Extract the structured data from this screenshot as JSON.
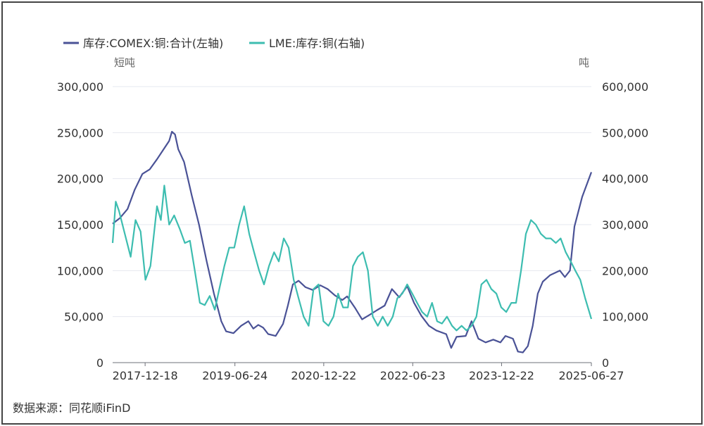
{
  "source": "数据来源：同花顺iFinD",
  "chart_data": {
    "type": "line",
    "title": "",
    "left_axis": {
      "unit": "短吨",
      "ylim": [
        0,
        300000
      ],
      "ticks": [
        "0",
        "50,000",
        "100,000",
        "150,000",
        "200,000",
        "250,000",
        "300,000"
      ]
    },
    "right_axis": {
      "unit": "吨",
      "ylim": [
        0,
        600000
      ],
      "ticks": [
        "0",
        "100,000",
        "200,000",
        "300,000",
        "400,000",
        "500,000",
        "600,000"
      ]
    },
    "x_ticks": [
      "2017-12-18",
      "2019-06-24",
      "2020-12-22",
      "2022-06-23",
      "2023-12-22",
      "2025-06-27"
    ],
    "x_range": [
      "2017-06-01",
      "2025-06-27"
    ],
    "grid": true,
    "legend_position": "top-left",
    "series": [
      {
        "name": "库存:COMEX:铜:合计(左轴)",
        "axis": "left",
        "color": "#4a5296",
        "points": [
          [
            "2017-06-01",
            151000
          ],
          [
            "2017-07-15",
            157000
          ],
          [
            "2017-09-01",
            167000
          ],
          [
            "2017-10-15",
            188000
          ],
          [
            "2017-12-01",
            205000
          ],
          [
            "2018-01-15",
            210000
          ],
          [
            "2018-03-01",
            221000
          ],
          [
            "2018-04-15",
            233000
          ],
          [
            "2018-05-15",
            241000
          ],
          [
            "2018-06-01",
            251000
          ],
          [
            "2018-06-20",
            248000
          ],
          [
            "2018-07-10",
            232000
          ],
          [
            "2018-08-15",
            218000
          ],
          [
            "2018-10-01",
            182000
          ],
          [
            "2018-11-15",
            150000
          ],
          [
            "2019-01-01",
            110000
          ],
          [
            "2019-02-15",
            75000
          ],
          [
            "2019-04-01",
            45000
          ],
          [
            "2019-05-01",
            34000
          ],
          [
            "2019-06-15",
            32000
          ],
          [
            "2019-08-01",
            40000
          ],
          [
            "2019-09-15",
            45000
          ],
          [
            "2019-10-15",
            37000
          ],
          [
            "2019-11-15",
            41000
          ],
          [
            "2019-12-15",
            38000
          ],
          [
            "2020-01-15",
            31000
          ],
          [
            "2020-03-01",
            29000
          ],
          [
            "2020-04-15",
            42000
          ],
          [
            "2020-05-15",
            62000
          ],
          [
            "2020-06-15",
            85000
          ],
          [
            "2020-07-20",
            89000
          ],
          [
            "2020-09-01",
            82000
          ],
          [
            "2020-10-15",
            79000
          ],
          [
            "2020-12-01",
            84000
          ],
          [
            "2021-01-15",
            80000
          ],
          [
            "2021-03-01",
            73000
          ],
          [
            "2021-04-15",
            68000
          ],
          [
            "2021-05-15",
            72000
          ],
          [
            "2021-07-01",
            60000
          ],
          [
            "2021-08-15",
            47000
          ],
          [
            "2021-10-01",
            52000
          ],
          [
            "2021-11-15",
            57000
          ],
          [
            "2022-01-01",
            62000
          ],
          [
            "2022-02-15",
            80000
          ],
          [
            "2022-04-01",
            71000
          ],
          [
            "2022-05-20",
            83000
          ],
          [
            "2022-07-01",
            65000
          ],
          [
            "2022-08-15",
            51000
          ],
          [
            "2022-10-01",
            40000
          ],
          [
            "2022-11-15",
            35000
          ],
          [
            "2023-01-15",
            31000
          ],
          [
            "2023-02-15",
            16000
          ],
          [
            "2023-03-20",
            28000
          ],
          [
            "2023-05-15",
            29000
          ],
          [
            "2023-06-20",
            45000
          ],
          [
            "2023-08-01",
            26000
          ],
          [
            "2023-09-15",
            22000
          ],
          [
            "2023-11-01",
            25000
          ],
          [
            "2023-12-15",
            22000
          ],
          [
            "2024-01-15",
            29000
          ],
          [
            "2024-03-01",
            26000
          ],
          [
            "2024-04-01",
            12000
          ],
          [
            "2024-05-01",
            11000
          ],
          [
            "2024-06-01",
            18000
          ],
          [
            "2024-07-01",
            40000
          ],
          [
            "2024-08-01",
            75000
          ],
          [
            "2024-09-01",
            88000
          ],
          [
            "2024-10-15",
            95000
          ],
          [
            "2024-12-15",
            100000
          ],
          [
            "2025-01-15",
            93000
          ],
          [
            "2025-02-15",
            100000
          ],
          [
            "2025-03-15",
            148000
          ],
          [
            "2025-05-01",
            180000
          ],
          [
            "2025-06-27",
            207000
          ]
        ]
      },
      {
        "name": "LME:库存:铜(右轴)",
        "axis": "right",
        "color": "#3dbdb0",
        "points": [
          [
            "2017-06-01",
            260000
          ],
          [
            "2017-06-20",
            350000
          ],
          [
            "2017-07-10",
            330000
          ],
          [
            "2017-08-15",
            280000
          ],
          [
            "2017-09-20",
            230000
          ],
          [
            "2017-10-20",
            310000
          ],
          [
            "2017-11-20",
            285000
          ],
          [
            "2017-12-20",
            180000
          ],
          [
            "2018-01-20",
            210000
          ],
          [
            "2018-03-01",
            340000
          ],
          [
            "2018-03-25",
            310000
          ],
          [
            "2018-04-15",
            385000
          ],
          [
            "2018-05-15",
            300000
          ],
          [
            "2018-06-15",
            320000
          ],
          [
            "2018-07-20",
            290000
          ],
          [
            "2018-08-20",
            260000
          ],
          [
            "2018-09-20",
            265000
          ],
          [
            "2018-10-20",
            200000
          ],
          [
            "2018-11-20",
            130000
          ],
          [
            "2018-12-20",
            125000
          ],
          [
            "2019-01-20",
            145000
          ],
          [
            "2019-02-20",
            115000
          ],
          [
            "2019-03-20",
            160000
          ],
          [
            "2019-04-20",
            210000
          ],
          [
            "2019-05-20",
            250000
          ],
          [
            "2019-06-20",
            250000
          ],
          [
            "2019-07-20",
            300000
          ],
          [
            "2019-08-20",
            340000
          ],
          [
            "2019-09-20",
            280000
          ],
          [
            "2019-10-20",
            240000
          ],
          [
            "2019-11-20",
            200000
          ],
          [
            "2019-12-20",
            170000
          ],
          [
            "2020-01-20",
            210000
          ],
          [
            "2020-02-20",
            240000
          ],
          [
            "2020-03-20",
            220000
          ],
          [
            "2020-04-20",
            270000
          ],
          [
            "2020-05-20",
            250000
          ],
          [
            "2020-06-20",
            180000
          ],
          [
            "2020-07-20",
            140000
          ],
          [
            "2020-08-20",
            100000
          ],
          [
            "2020-09-20",
            80000
          ],
          [
            "2020-10-20",
            160000
          ],
          [
            "2020-11-20",
            170000
          ],
          [
            "2020-12-20",
            90000
          ],
          [
            "2021-01-20",
            80000
          ],
          [
            "2021-02-20",
            100000
          ],
          [
            "2021-03-20",
            150000
          ],
          [
            "2021-04-20",
            120000
          ],
          [
            "2021-05-20",
            120000
          ],
          [
            "2021-06-20",
            210000
          ],
          [
            "2021-07-20",
            230000
          ],
          [
            "2021-08-20",
            240000
          ],
          [
            "2021-09-20",
            200000
          ],
          [
            "2021-10-20",
            100000
          ],
          [
            "2021-11-20",
            80000
          ],
          [
            "2021-12-20",
            100000
          ],
          [
            "2022-01-20",
            80000
          ],
          [
            "2022-02-20",
            100000
          ],
          [
            "2022-03-20",
            140000
          ],
          [
            "2022-04-20",
            150000
          ],
          [
            "2022-05-20",
            170000
          ],
          [
            "2022-06-20",
            150000
          ],
          [
            "2022-07-20",
            130000
          ],
          [
            "2022-08-20",
            110000
          ],
          [
            "2022-09-20",
            100000
          ],
          [
            "2022-10-20",
            130000
          ],
          [
            "2022-11-20",
            90000
          ],
          [
            "2022-12-20",
            85000
          ],
          [
            "2023-01-20",
            100000
          ],
          [
            "2023-02-20",
            80000
          ],
          [
            "2023-03-20",
            70000
          ],
          [
            "2023-04-20",
            80000
          ],
          [
            "2023-05-20",
            70000
          ],
          [
            "2023-06-20",
            80000
          ],
          [
            "2023-07-20",
            100000
          ],
          [
            "2023-08-20",
            170000
          ],
          [
            "2023-09-20",
            180000
          ],
          [
            "2023-10-20",
            160000
          ],
          [
            "2023-11-20",
            150000
          ],
          [
            "2023-12-20",
            120000
          ],
          [
            "2024-01-20",
            110000
          ],
          [
            "2024-02-20",
            130000
          ],
          [
            "2024-03-20",
            130000
          ],
          [
            "2024-04-20",
            200000
          ],
          [
            "2024-05-20",
            280000
          ],
          [
            "2024-06-20",
            310000
          ],
          [
            "2024-07-20",
            300000
          ],
          [
            "2024-08-20",
            280000
          ],
          [
            "2024-09-20",
            270000
          ],
          [
            "2024-10-20",
            270000
          ],
          [
            "2024-11-20",
            260000
          ],
          [
            "2024-12-20",
            270000
          ],
          [
            "2025-01-20",
            240000
          ],
          [
            "2025-02-20",
            220000
          ],
          [
            "2025-03-20",
            200000
          ],
          [
            "2025-04-20",
            180000
          ],
          [
            "2025-05-20",
            140000
          ],
          [
            "2025-06-27",
            95000
          ]
        ]
      }
    ]
  }
}
